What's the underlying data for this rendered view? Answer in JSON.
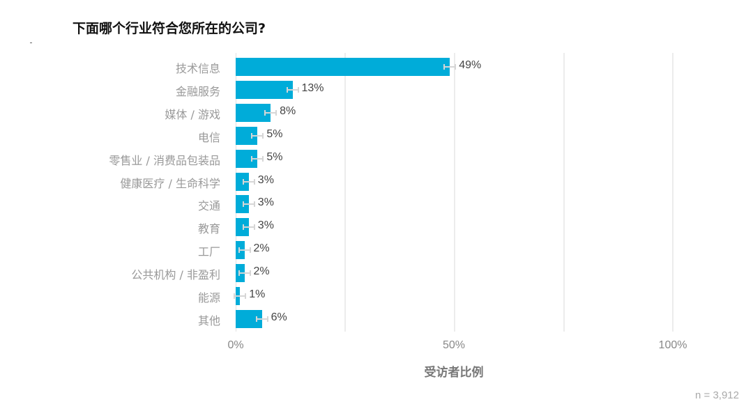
{
  "chart_data": {
    "type": "bar",
    "orientation": "horizontal",
    "title": "下面哪个行业符合您所在的公司?",
    "xlabel": "受访者比例",
    "ylabel": "",
    "xlim": [
      0,
      100
    ],
    "x_ticks": [
      "0%",
      "50%",
      "100%"
    ],
    "gridlines_at": [
      25,
      50,
      75,
      100
    ],
    "grid": true,
    "bar_color": "#00acd9",
    "error_bars": true,
    "categories": [
      "技术信息",
      "金融服务",
      "媒体 / 游戏",
      "电信",
      "零售业 / 消费品包装品",
      "健康医疗  / 生命科学",
      "交通",
      "教育",
      "工厂",
      "公共机构 / 非盈利",
      "能源",
      "其他"
    ],
    "values": [
      49,
      13,
      8,
      5,
      5,
      3,
      3,
      3,
      2,
      2,
      1,
      6
    ],
    "value_labels": [
      "49%",
      "13%",
      "8%",
      "5%",
      "5%",
      "3%",
      "3%",
      "3%",
      "2%",
      "2%",
      "1%",
      "6%"
    ],
    "n_label": "n =  3,912"
  },
  "header": {
    "title": "下面哪个行业符合您所在的公司?"
  },
  "axis": {
    "ticks": [
      "0%",
      "50%",
      "100%"
    ],
    "xlabel": "受访者比例"
  },
  "footer": {
    "n": "n =  3,912"
  }
}
